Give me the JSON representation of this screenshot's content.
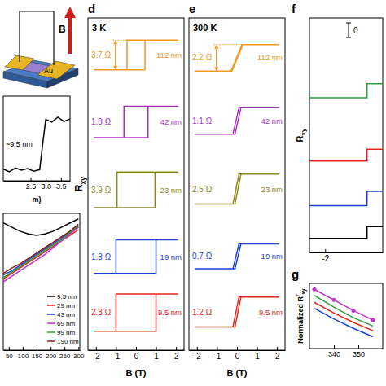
{
  "schematic": {
    "field_label": "B",
    "electrode_label": "Au"
  },
  "chart_data": [
    {
      "type": "line",
      "x_label": "m)",
      "xlim": [
        1.6,
        3.8
      ],
      "xticks": [
        2.5,
        {
          "value": 3,
          "label": "3.0"
        },
        3.5
      ],
      "ylim": [
        -2,
        14
      ],
      "tick_labels": "x",
      "annotation": "~9.5 nm",
      "series": [
        {
          "color": "#000000",
          "x": [
            1.6,
            1.8,
            2.0,
            2.2,
            2.4,
            2.6,
            2.8,
            2.9,
            3.0,
            3.2,
            3.4,
            3.6,
            3.8
          ],
          "values": [
            0.2,
            -0.3,
            0.4,
            0.0,
            0.3,
            -0.2,
            0.1,
            5.0,
            9.6,
            9.1,
            10.0,
            9.2,
            9.7
          ]
        }
      ]
    },
    {
      "type": "line",
      "xlim": [
        30,
        305
      ],
      "xticks": [
        50,
        100,
        150,
        200,
        250,
        300
      ],
      "ylim": [
        0,
        1
      ],
      "tick_labels": "x",
      "legend": "lower-right",
      "x": [
        30,
        60,
        90,
        120,
        150,
        180,
        210,
        240,
        270,
        300
      ],
      "series": [
        {
          "name": "9.5 nm",
          "color": "#000000",
          "values": [
            0.93,
            0.9,
            0.87,
            0.85,
            0.84,
            0.85,
            0.87,
            0.9,
            0.93,
            0.96
          ]
        },
        {
          "name": "29 nm",
          "color": "#e3261f",
          "values": [
            0.52,
            0.56,
            0.6,
            0.64,
            0.68,
            0.72,
            0.76,
            0.8,
            0.84,
            0.88
          ]
        },
        {
          "name": "43 nm",
          "color": "#1f3fd6",
          "values": [
            0.55,
            0.58,
            0.62,
            0.66,
            0.7,
            0.74,
            0.78,
            0.82,
            0.86,
            0.9
          ]
        },
        {
          "name": "69 nm",
          "color": "#c22fc9",
          "values": [
            0.5,
            0.54,
            0.58,
            0.62,
            0.66,
            0.7,
            0.75,
            0.8,
            0.85,
            0.9
          ]
        },
        {
          "name": "99 nm",
          "color": "#2e9e3a",
          "values": [
            0.53,
            0.57,
            0.61,
            0.65,
            0.69,
            0.73,
            0.77,
            0.81,
            0.86,
            0.91
          ]
        },
        {
          "name": "190 nm",
          "color": "#8b1a1a",
          "values": [
            0.56,
            0.6,
            0.63,
            0.67,
            0.71,
            0.75,
            0.79,
            0.83,
            0.87,
            0.92
          ]
        }
      ]
    },
    {
      "panel": "d",
      "type": "line",
      "title": "3 K",
      "x_label": "B (T)",
      "y_label": {
        "text": "R",
        "sub": "xy"
      },
      "xlim": [
        -2.4,
        2.4
      ],
      "xticks": [
        -2,
        -1,
        0,
        1,
        2
      ],
      "ylim": [
        0,
        10
      ],
      "tick_labels": "x",
      "series": [
        {
          "name": "112 nm",
          "annotation": "3.7 Ω",
          "color": "#f39a1e",
          "x": [
            -2.1,
            0.45,
            0.45,
            2.1,
            -0.45,
            -0.45,
            -2.1
          ],
          "values": [
            8.44,
            8.44,
            9.33,
            9.33,
            9.33,
            8.44,
            8.44
          ]
        },
        {
          "name": "42 nm",
          "annotation": "1.8 Ω",
          "color": "#a62fc1",
          "x": [
            -2.1,
            0.6,
            0.6,
            2.1,
            -0.6,
            -0.6,
            -2.1
          ],
          "values": [
            6.4,
            6.4,
            7.34,
            7.34,
            7.34,
            6.4,
            6.4
          ]
        },
        {
          "name": "23 nm",
          "annotation": "3.9 Ω",
          "color": "#8a8a14",
          "x": [
            -2.1,
            0.95,
            0.95,
            2.1,
            -0.95,
            -0.95,
            -2.1
          ],
          "values": [
            4.29,
            4.29,
            5.36,
            5.36,
            5.36,
            4.29,
            4.29
          ]
        },
        {
          "name": "19 nm",
          "annotation": "1.3 Ω",
          "color": "#1f3fd6",
          "x": [
            -2.1,
            1.0,
            1.0,
            2.1,
            -1.0,
            -1.0,
            -2.1
          ],
          "values": [
            2.31,
            2.31,
            3.32,
            3.32,
            3.32,
            2.31,
            2.31
          ]
        },
        {
          "name": "9.5 nm",
          "annotation": "2.3 Ω",
          "color": "#e3261f",
          "x": [
            -2.1,
            1.0,
            1.0,
            2.1,
            -1.0,
            -1.0,
            -2.1
          ],
          "values": [
            0.57,
            0.57,
            1.69,
            1.69,
            1.69,
            0.57,
            0.57
          ]
        }
      ]
    },
    {
      "panel": "e",
      "type": "line",
      "title": "300 K",
      "x_label": "B (T)",
      "xlim": [
        -2.4,
        2.4
      ],
      "xticks": [
        -2,
        -1,
        0,
        1,
        2
      ],
      "ylim": [
        0,
        10
      ],
      "tick_labels": "x",
      "series": [
        {
          "name": "112 nm",
          "annotation": "2.2 Ω",
          "color": "#f39a1e",
          "x": [
            -2.1,
            -0.25,
            0.3,
            2.1,
            0.25,
            -0.3,
            -2.1
          ],
          "values": [
            8.4,
            8.4,
            9.2,
            9.2,
            9.2,
            8.4,
            8.4
          ]
        },
        {
          "name": "42 nm",
          "annotation": "1.1 Ω",
          "color": "#a62fc1",
          "x": [
            -2.1,
            -0.1,
            0.2,
            2.1,
            0.1,
            -0.2,
            -2.1
          ],
          "values": [
            6.5,
            6.5,
            7.3,
            7.3,
            7.3,
            6.5,
            6.5
          ]
        },
        {
          "name": "23 nm",
          "annotation": "2.5 Ω",
          "color": "#8a8a14",
          "x": [
            -2.1,
            -0.1,
            0.2,
            2.1,
            0.1,
            -0.2,
            -2.1
          ],
          "values": [
            4.4,
            4.4,
            5.3,
            5.3,
            5.3,
            4.4,
            4.4
          ]
        },
        {
          "name": "19 nm",
          "annotation": "0.7 Ω",
          "color": "#1f3fd6",
          "x": [
            -2.1,
            -0.1,
            0.2,
            2.1,
            0.1,
            -0.2,
            -2.1
          ],
          "values": [
            2.45,
            2.45,
            3.2,
            3.2,
            3.2,
            2.45,
            2.45
          ]
        },
        {
          "name": "9.5 nm",
          "annotation": "1.2 Ω",
          "color": "#e3261f",
          "x": [
            -2.1,
            -0.1,
            0.2,
            2.1,
            0.1,
            -0.2,
            -2.1
          ],
          "values": [
            0.7,
            0.7,
            1.6,
            1.6,
            1.6,
            0.7,
            0.7
          ]
        }
      ]
    },
    {
      "panel": "f",
      "type": "line",
      "y_label": {
        "text": "R",
        "sub": "xy"
      },
      "xlim": [
        -2.6,
        0.2
      ],
      "xticks": [
        -2
      ],
      "ylim": [
        0,
        10
      ],
      "tick_labels": "x",
      "scale_bar_label": "0",
      "series": [
        {
          "color": "#2e9e3a",
          "x": [
            -2.6,
            -0.4,
            -0.4,
            0.2
          ],
          "values": [
            6.6,
            6.6,
            7.2,
            7.2
          ]
        },
        {
          "color": "#e3261f",
          "x": [
            -2.6,
            -0.4,
            -0.4,
            0.2
          ],
          "values": [
            3.9,
            3.9,
            4.4,
            4.4
          ]
        },
        {
          "color": "#1f3fd6",
          "x": [
            -2.6,
            -0.4,
            -0.4,
            0.2
          ],
          "values": [
            2.0,
            2.0,
            2.6,
            2.6
          ]
        },
        {
          "color": "#000000",
          "x": [
            -2.6,
            -0.4,
            -0.4,
            0.2
          ],
          "values": [
            0.6,
            0.6,
            1.1,
            1.1
          ]
        }
      ]
    },
    {
      "panel": "g",
      "type": "line",
      "y_label": {
        "text": "Normalized R",
        "sup": "r",
        "sub": "xy"
      },
      "xlim": [
        330,
        360
      ],
      "xticks": [
        340,
        350
      ],
      "ylim": [
        0,
        1.1
      ],
      "tick_labels": "x",
      "x": [
        332,
        340,
        348,
        356
      ],
      "series": [
        {
          "color": "#c22fc9",
          "marker": "circle",
          "values": [
            1.0,
            0.82,
            0.64,
            0.48
          ]
        },
        {
          "color": "#2e9e3a",
          "values": [
            0.9,
            0.7,
            0.52,
            0.38
          ]
        },
        {
          "color": "#e3261f",
          "values": [
            0.78,
            0.6,
            0.44,
            0.3
          ]
        },
        {
          "color": "#1f3fd6",
          "values": [
            0.68,
            0.5,
            0.34,
            0.2
          ]
        }
      ]
    }
  ]
}
